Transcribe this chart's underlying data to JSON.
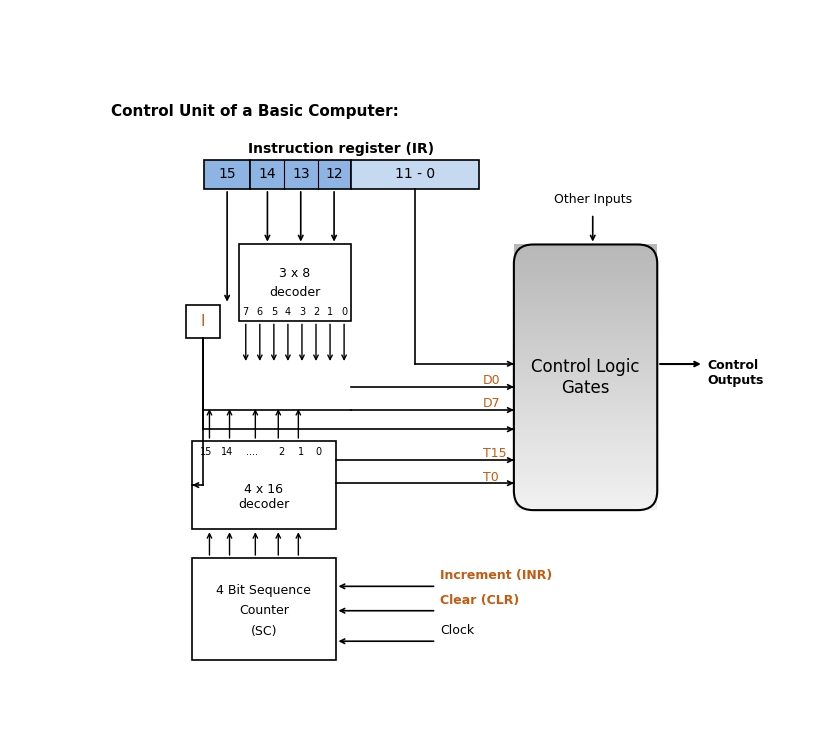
{
  "title": "Control Unit of a Basic Computer:",
  "title_fontsize": 11,
  "title_bold": true,
  "ir_label": "Instruction register (IR)",
  "ir_color_dark": "#8EB4E3",
  "ir_color_light": "#C5D9F1",
  "clg_label": "Control Logic\nGates",
  "bg_color": "#FFFFFF",
  "label_color_orange": "#C55A11",
  "decoder_output_nums": [
    "7",
    "6",
    "5",
    "4",
    "3",
    "2",
    "1",
    "0"
  ],
  "d0_label": "D0",
  "d7_label": "D7",
  "t15_label": "T15",
  "t0_label": "T0",
  "increment_label": "Increment (INR)",
  "clear_label": "Clear (CLR)",
  "clock_label": "Clock",
  "other_inputs_label": "Other Inputs",
  "control_outputs_label": "Control\nOutputs",
  "i_label": "I"
}
